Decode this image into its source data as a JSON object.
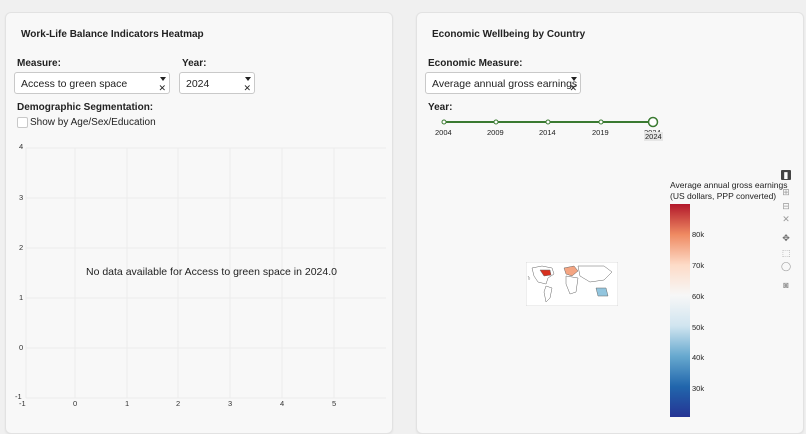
{
  "left": {
    "title": "Work-Life Balance Indicators Heatmap",
    "measure_label": "Measure:",
    "measure_value": "Access to green space",
    "year_label": "Year:",
    "year_value": "2024",
    "segmentation_label": "Demographic Segmentation:",
    "checkbox_label": "Show by Age/Sex/Education",
    "checkbox_checked": false,
    "no_data_message": "No data available for Access to green space in 2024.0",
    "y_ticks": [
      "4",
      "3",
      "2",
      "1",
      "0",
      "-1"
    ],
    "x_ticks": [
      "-1",
      "0",
      "1",
      "2",
      "3",
      "4",
      "5"
    ]
  },
  "right": {
    "title": "Economic Wellbeing by Country",
    "measure_label": "Economic Measure:",
    "measure_value": "Average annual gross earnings",
    "year_label": "Year:",
    "slider_marks": [
      "2004",
      "2009",
      "2014",
      "2019",
      "2024"
    ],
    "slider_value": "2024",
    "colorbar_title_line1": "Average annual gross earnings",
    "colorbar_title_line2": "(US dollars, PPP converted)",
    "colorbar_ticks": [
      "80k",
      "70k",
      "60k",
      "50k",
      "40k",
      "30k"
    ],
    "colorbar_colors": [
      "#b2182b",
      "#ef8a62",
      "#fddbc7",
      "#f7f7f7",
      "#d1e5f0",
      "#67a9cf",
      "#2166ac",
      "#253494"
    ],
    "modebar_icons": [
      "plotly-bar-icon",
      "zoom-in-icon",
      "zoom-out-icon",
      "autoscale-icon",
      "pan-icon",
      "box-select-icon",
      "lasso-icon",
      "camera-icon"
    ]
  }
}
